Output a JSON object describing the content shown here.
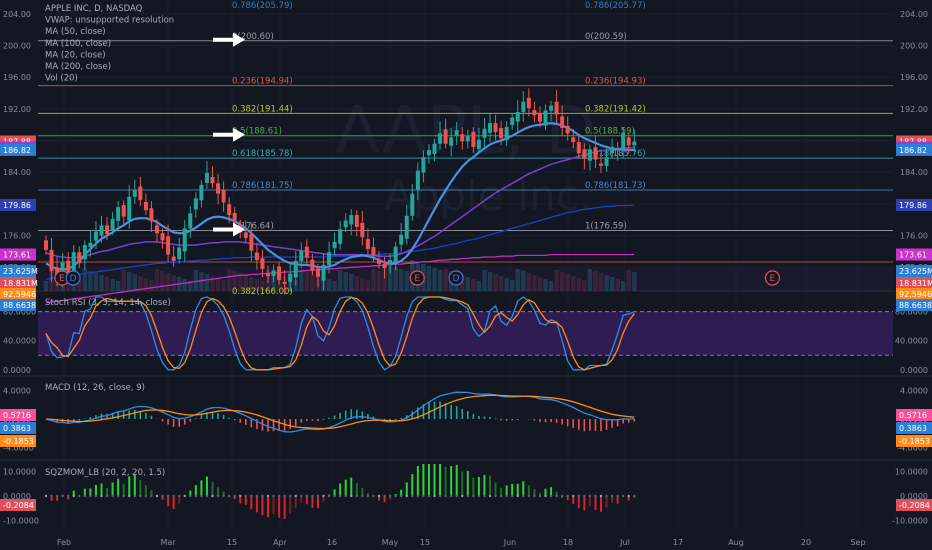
{
  "chart_data": [
    {
      "type": "candlestick",
      "title": "APPLE INC, D, NASDAQ",
      "watermark": {
        "ticker": "AAPL, D",
        "name": "Apple Inc."
      },
      "legend": [
        "APPLE INC, D, NASDAQ",
        "VWAP: unsupported resolution",
        "MA (50, close)",
        "MA (100, close)",
        "MA (20, close)",
        "MA (200, close)",
        "Vol (20)"
      ],
      "x_tick_labels": [
        "Feb",
        "Mar",
        "15",
        "Apr",
        "16",
        "May",
        "15",
        "Jun",
        "18",
        "Jul",
        "17",
        "Aug",
        "20",
        "Sep"
      ],
      "y_ticks": [
        172.0,
        176.0,
        180.0,
        184.0,
        188.0,
        192.0,
        196.0,
        200.0,
        204.0
      ],
      "y_tick_labels": [
        "172.00",
        "176.00",
        "180.00",
        "184.00",
        "188.00",
        "192.00",
        "196.00",
        "200.00",
        "204.00"
      ],
      "ylim": [
        169.0,
        205.5
      ],
      "price_tags": [
        {
          "value": 187.88,
          "label": "187.88",
          "color": "#e0505a"
        },
        {
          "value": 187.12,
          "label": "187.12",
          "color": "#8c3fd9"
        },
        {
          "value": 186.82,
          "label": "186.82",
          "color": "#2a7fd4"
        },
        {
          "value": 179.86,
          "label": "179.86",
          "color": "#2f3fb0"
        },
        {
          "value": 173.61,
          "label": "173.61",
          "color": "#d02fd0"
        }
      ],
      "volume_tags": [
        {
          "label": "23.625M",
          "color": "#2a7fd4"
        },
        {
          "label": "18.831M",
          "color": "#e0505a"
        }
      ],
      "fib_left": [
        {
          "label": "0.786(205.79)",
          "value": 205.79,
          "color": "#2e7fbf"
        },
        {
          "label": "0(200.60)",
          "value": 200.6,
          "color": "#9b9ea6"
        },
        {
          "label": "0.236(194.94)",
          "value": 194.94,
          "color": "#d9534f"
        },
        {
          "label": "0.382(191.44)",
          "value": 191.44,
          "color": "#b7c532"
        },
        {
          "label": "0.5(188.61)",
          "value": 188.61,
          "color": "#4caf50"
        },
        {
          "label": "0.618(185.78)",
          "value": 185.78,
          "color": "#3fa7b5"
        },
        {
          "label": "0.786(181.75)",
          "value": 181.75,
          "color": "#4f86c6"
        },
        {
          "label": "1(176.64)",
          "value": 176.64,
          "color": "#9b9ea6"
        }
      ],
      "fib_right": [
        {
          "label": "0.786(205.77)",
          "value": 205.77,
          "color": "#2e7fbf"
        },
        {
          "label": "0(200.59)",
          "value": 200.59,
          "color": "#9b9ea6"
        },
        {
          "label": "0.236(194.93)",
          "value": 194.93,
          "color": "#d9534f"
        },
        {
          "label": "0.382(191.42)",
          "value": 191.42,
          "color": "#b7c532"
        },
        {
          "label": "0.5(188.59)",
          "value": 188.59,
          "color": "#4caf50"
        },
        {
          "label": "0.618(185.76)",
          "value": 185.76,
          "color": "#3fa7b5"
        },
        {
          "label": "0.786(181.73)",
          "value": 181.73,
          "color": "#4f86c6"
        },
        {
          "label": "1(176.59)",
          "value": 176.59,
          "color": "#9b9ea6"
        }
      ],
      "bottom_fib_label": "0.382(166.00)",
      "events": [
        {
          "label": "E",
          "x_index": 0
        },
        {
          "label": "D",
          "x_index": 2
        },
        {
          "label": "E",
          "x_index": 64
        },
        {
          "label": "D",
          "x_index": 71
        },
        {
          "label": "E",
          "x_index": 128
        }
      ],
      "annotations": [
        "arrow pointing to 0(200.60)",
        "arrow pointing to 0.5(188.61)",
        "arrow pointing to 1(176.64)"
      ],
      "colors": {
        "up": "#26a69a",
        "down": "#ef5350",
        "ma20": "#4a90e2",
        "ma50": "#7b3fd0",
        "ma100": "#1f3fbf",
        "ma200": "#c02fc0"
      },
      "close": [
        174.2,
        171.5,
        170.8,
        172.6,
        171.1,
        173.9,
        172.5,
        174.8,
        175.1,
        176.5,
        177.3,
        176.2,
        178.1,
        179.6,
        178.4,
        180.9,
        181.7,
        180.5,
        179.2,
        177.8,
        176.3,
        175.4,
        173.6,
        172.8,
        174.5,
        176.9,
        178.8,
        180.7,
        182.4,
        183.9,
        182.6,
        181.3,
        180.2,
        178.6,
        177.9,
        176.4,
        175.7,
        174.1,
        172.9,
        171.8,
        170.9,
        171.6,
        170.4,
        169.9,
        171.2,
        172.8,
        174.1,
        173.2,
        171.6,
        170.8,
        172.3,
        173.9,
        175.2,
        176.8,
        177.9,
        178.6,
        177.1,
        175.8,
        174.3,
        173.5,
        172.4,
        171.9,
        172.9,
        174.6,
        176.1,
        178.5,
        181.3,
        184.2,
        185.9,
        186.8,
        187.6,
        188.9,
        187.6,
        188.4,
        189.3,
        187.9,
        188.6,
        187.2,
        188.1,
        189.5,
        190.2,
        189.1,
        188.3,
        189.7,
        190.9,
        191.6,
        192.9,
        192.1,
        191.2,
        190.4,
        191.8,
        192.4,
        191.3,
        189.6,
        188.9,
        187.8,
        186.4,
        185.7,
        186.9,
        185.6,
        184.8,
        185.9,
        187.2,
        186.8,
        188.9,
        187.4,
        187.88
      ],
      "ma20": [
        172.5,
        172.1,
        171.8,
        171.7,
        171.8,
        172.2,
        172.8,
        173.6,
        174.3,
        175.0,
        175.6,
        176.0,
        176.4,
        176.9,
        177.3,
        177.8,
        178.1,
        178.2,
        178.2,
        178.0,
        177.7,
        177.2,
        176.8,
        176.4,
        176.3,
        176.3,
        176.6,
        177.0,
        177.5,
        178.0,
        178.3,
        178.4,
        178.3,
        178.1,
        177.8,
        177.4,
        176.9,
        176.3,
        175.6,
        174.9,
        174.2,
        173.7,
        173.2,
        172.8,
        172.5,
        172.4,
        172.3,
        172.3,
        172.2,
        172.0,
        172.0,
        172.1,
        172.3,
        172.7,
        173.0,
        173.3,
        173.4,
        173.5,
        173.4,
        173.2,
        172.9,
        172.6,
        172.5,
        172.5,
        172.8,
        173.4,
        174.3,
        175.4,
        176.7,
        178.0,
        179.3,
        180.6,
        181.7,
        182.8,
        183.8,
        184.7,
        185.4,
        185.9,
        186.5,
        187.0,
        187.5,
        187.8,
        188.0,
        188.3,
        188.6,
        189.0,
        189.4,
        189.7,
        189.9,
        190.0,
        190.1,
        190.2,
        190.1,
        189.9,
        189.6,
        189.2,
        188.7,
        188.3,
        188.0,
        187.7,
        187.4,
        187.2,
        187.0,
        186.9,
        186.9,
        186.8,
        186.82
      ],
      "ma50": [
        173.8,
        173.6,
        173.4,
        173.3,
        173.2,
        173.2,
        173.3,
        173.4,
        173.6,
        173.8,
        174.0,
        174.1,
        174.3,
        174.5,
        174.7,
        174.9,
        175.0,
        175.1,
        175.2,
        175.2,
        175.2,
        175.1,
        175.0,
        174.9,
        174.8,
        174.8,
        174.8,
        174.8,
        174.9,
        175.0,
        175.1,
        175.1,
        175.2,
        175.2,
        175.2,
        175.2,
        175.1,
        175.0,
        174.9,
        174.8,
        174.7,
        174.6,
        174.5,
        174.4,
        174.3,
        174.2,
        174.1,
        174.0,
        173.9,
        173.8,
        173.7,
        173.6,
        173.6,
        173.6,
        173.6,
        173.6,
        173.6,
        173.6,
        173.5,
        173.5,
        173.4,
        173.4,
        173.4,
        173.5,
        173.7,
        174.0,
        174.3,
        174.7,
        175.1,
        175.5,
        175.9,
        176.4,
        176.9,
        177.4,
        177.9,
        178.4,
        178.9,
        179.4,
        179.9,
        180.4,
        180.9,
        181.4,
        181.8,
        182.2,
        182.6,
        183.0,
        183.4,
        183.8,
        184.1,
        184.4,
        184.7,
        185.0,
        185.2,
        185.4,
        185.6,
        185.8,
        186.0,
        186.2,
        186.4,
        186.6,
        186.7,
        186.8,
        186.9,
        187.0,
        187.0,
        187.1,
        187.12
      ],
      "ma100": [
        170.5,
        170.6,
        170.7,
        170.8,
        170.9,
        171.0,
        171.1,
        171.2,
        171.3,
        171.4,
        171.5,
        171.6,
        171.7,
        171.8,
        171.9,
        172.0,
        172.1,
        172.2,
        172.3,
        172.4,
        172.5,
        172.5,
        172.6,
        172.6,
        172.7,
        172.7,
        172.8,
        172.8,
        172.9,
        172.9,
        173.0,
        173.0,
        173.1,
        173.1,
        173.2,
        173.2,
        173.2,
        173.3,
        173.3,
        173.3,
        173.3,
        173.3,
        173.3,
        173.3,
        173.3,
        173.3,
        173.3,
        173.3,
        173.3,
        173.3,
        173.3,
        173.3,
        173.4,
        173.4,
        173.4,
        173.5,
        173.5,
        173.5,
        173.6,
        173.6,
        173.6,
        173.7,
        173.7,
        173.8,
        173.8,
        173.9,
        174.0,
        174.1,
        174.2,
        174.3,
        174.4,
        174.6,
        174.7,
        174.9,
        175.0,
        175.2,
        175.4,
        175.5,
        175.7,
        175.9,
        176.1,
        176.3,
        176.5,
        176.7,
        176.9,
        177.1,
        177.3,
        177.5,
        177.7,
        177.9,
        178.1,
        178.3,
        178.5,
        178.7,
        178.9,
        179.0,
        179.2,
        179.3,
        179.4,
        179.5,
        179.6,
        179.7,
        179.7,
        179.8,
        179.8,
        179.8,
        179.86
      ],
      "ma200": [
        167.5,
        167.6,
        167.7,
        167.8,
        167.9,
        168.0,
        168.1,
        168.2,
        168.3,
        168.4,
        168.5,
        168.6,
        168.7,
        168.8,
        168.9,
        169.0,
        169.1,
        169.2,
        169.3,
        169.4,
        169.5,
        169.6,
        169.7,
        169.8,
        169.9,
        170.0,
        170.1,
        170.2,
        170.3,
        170.4,
        170.5,
        170.6,
        170.7,
        170.8,
        170.9,
        171.0,
        171.0,
        171.1,
        171.1,
        171.2,
        171.2,
        171.3,
        171.3,
        171.4,
        171.4,
        171.5,
        171.5,
        171.6,
        171.6,
        171.7,
        171.7,
        171.8,
        171.8,
        171.9,
        171.9,
        172.0,
        172.0,
        172.1,
        172.1,
        172.2,
        172.2,
        172.3,
        172.3,
        172.4,
        172.4,
        172.5,
        172.5,
        172.6,
        172.7,
        172.7,
        172.8,
        172.9,
        172.9,
        173.0,
        173.0,
        173.1,
        173.1,
        173.2,
        173.2,
        173.3,
        173.3,
        173.3,
        173.4,
        173.4,
        173.4,
        173.5,
        173.5,
        173.5,
        173.5,
        173.5,
        173.5,
        173.6,
        173.6,
        173.6,
        173.6,
        173.6,
        173.6,
        173.6,
        173.6,
        173.6,
        173.6,
        173.6,
        173.6,
        173.6,
        173.6,
        173.6,
        173.61
      ]
    },
    {
      "type": "line",
      "title": "Stoch RSI (3, 3, 14, 14, close)",
      "y_tick_labels": [
        "0.0000",
        "40.0000",
        "80.0000"
      ],
      "ylim": [
        -3,
        100
      ],
      "band": [
        20,
        80
      ],
      "tags": [
        {
          "label": "92.5946",
          "color": "#ff8c1a"
        },
        {
          "label": "88.6638",
          "color": "#2a7fd4"
        }
      ]
    },
    {
      "type": "line",
      "title": "MACD (12, 26, close, 9)",
      "y_tick_labels": [
        "-4.0000",
        "0.0000",
        "4.0000"
      ],
      "ylim": [
        -5.2,
        5.2
      ],
      "tags": [
        {
          "label": "0.5716",
          "color": "#ff4f9a"
        },
        {
          "label": "0.3863",
          "color": "#2a7fd4"
        },
        {
          "label": "-0.1853",
          "color": "#ff8c1a"
        }
      ]
    },
    {
      "type": "bar",
      "title": "SQZMOM_LB (20, 2, 20, 1.5)",
      "y_tick_labels": [
        "10.0000",
        "0.0000",
        "-10.0000"
      ],
      "ylim": [
        -13,
        13
      ],
      "tags": [
        {
          "label": "-0.2084",
          "color": "#e0505a"
        }
      ]
    }
  ]
}
